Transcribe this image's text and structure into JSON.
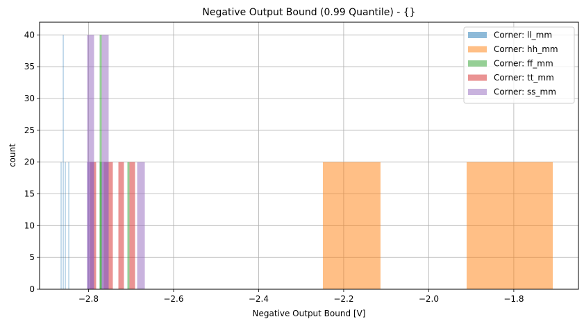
{
  "chart_data": {
    "type": "bar",
    "title": "Negative Output Bound (0.99 Quantile) - {}",
    "xlabel": "Negative Output Bound [V]",
    "ylabel": "count",
    "xlim": [
      -2.915,
      -1.648
    ],
    "ylim": [
      0,
      42
    ],
    "grid": true,
    "legend_position": "upper right",
    "xticks": [
      -2.8,
      -2.6,
      -2.4,
      -2.2,
      -2.0,
      -1.8
    ],
    "xtick_labels": [
      "−2.8",
      "−2.6",
      "−2.4",
      "−2.2",
      "−2.0",
      "−1.8"
    ],
    "yticks": [
      0,
      5,
      10,
      15,
      20,
      25,
      30,
      35,
      40
    ],
    "ytick_labels": [
      "0",
      "5",
      "10",
      "15",
      "20",
      "25",
      "30",
      "35",
      "40"
    ],
    "series": [
      {
        "name": "Corner: ll_mm",
        "color": "#1f77b4",
        "alpha": 0.5,
        "bars": [
          {
            "x0": -2.8652,
            "x1": -2.8636,
            "count": 20
          },
          {
            "x0": -2.8602,
            "x1": -2.8586,
            "count": 40
          },
          {
            "x0": -2.8553,
            "x1": -2.8537,
            "count": 20
          },
          {
            "x0": -2.8472,
            "x1": -2.8456,
            "count": 20
          }
        ]
      },
      {
        "name": "Corner: hh_mm",
        "color": "#ff7f0e",
        "alpha": 0.5,
        "bars": [
          {
            "x0": -2.2489,
            "x1": -2.1134,
            "count": 20
          },
          {
            "x0": -1.9109,
            "x1": -1.7084,
            "count": 20
          }
        ]
      },
      {
        "name": "Corner: ff_mm",
        "color": "#2ca02c",
        "alpha": 0.5,
        "bars": [
          {
            "x0": -2.7738,
            "x1": -2.7689,
            "count": 40
          },
          {
            "x0": -2.7738,
            "x1": -2.7689,
            "count": 20
          },
          {
            "x0": -2.7085,
            "x1": -2.7036,
            "count": 20
          }
        ]
      },
      {
        "name": "Corner: tt_mm",
        "color": "#d62728",
        "alpha": 0.5,
        "bars": [
          {
            "x0": -2.7967,
            "x1": -2.782,
            "count": 20
          },
          {
            "x0": -2.764,
            "x1": -2.7428,
            "count": 20
          },
          {
            "x0": -2.7297,
            "x1": -2.7167,
            "count": 20
          },
          {
            "x0": -2.7036,
            "x1": -2.6905,
            "count": 20
          }
        ]
      },
      {
        "name": "Corner: ss_mm",
        "color": "#9467bd",
        "alpha": 0.5,
        "bars": [
          {
            "x0": -2.8033,
            "x1": -2.7869,
            "count": 40
          },
          {
            "x0": -2.8033,
            "x1": -2.7869,
            "count": 20
          },
          {
            "x0": -2.7689,
            "x1": -2.7526,
            "count": 40
          },
          {
            "x0": -2.7689,
            "x1": -2.7526,
            "count": 20
          },
          {
            "x0": -2.6856,
            "x1": -2.6676,
            "count": 20
          }
        ]
      }
    ]
  }
}
